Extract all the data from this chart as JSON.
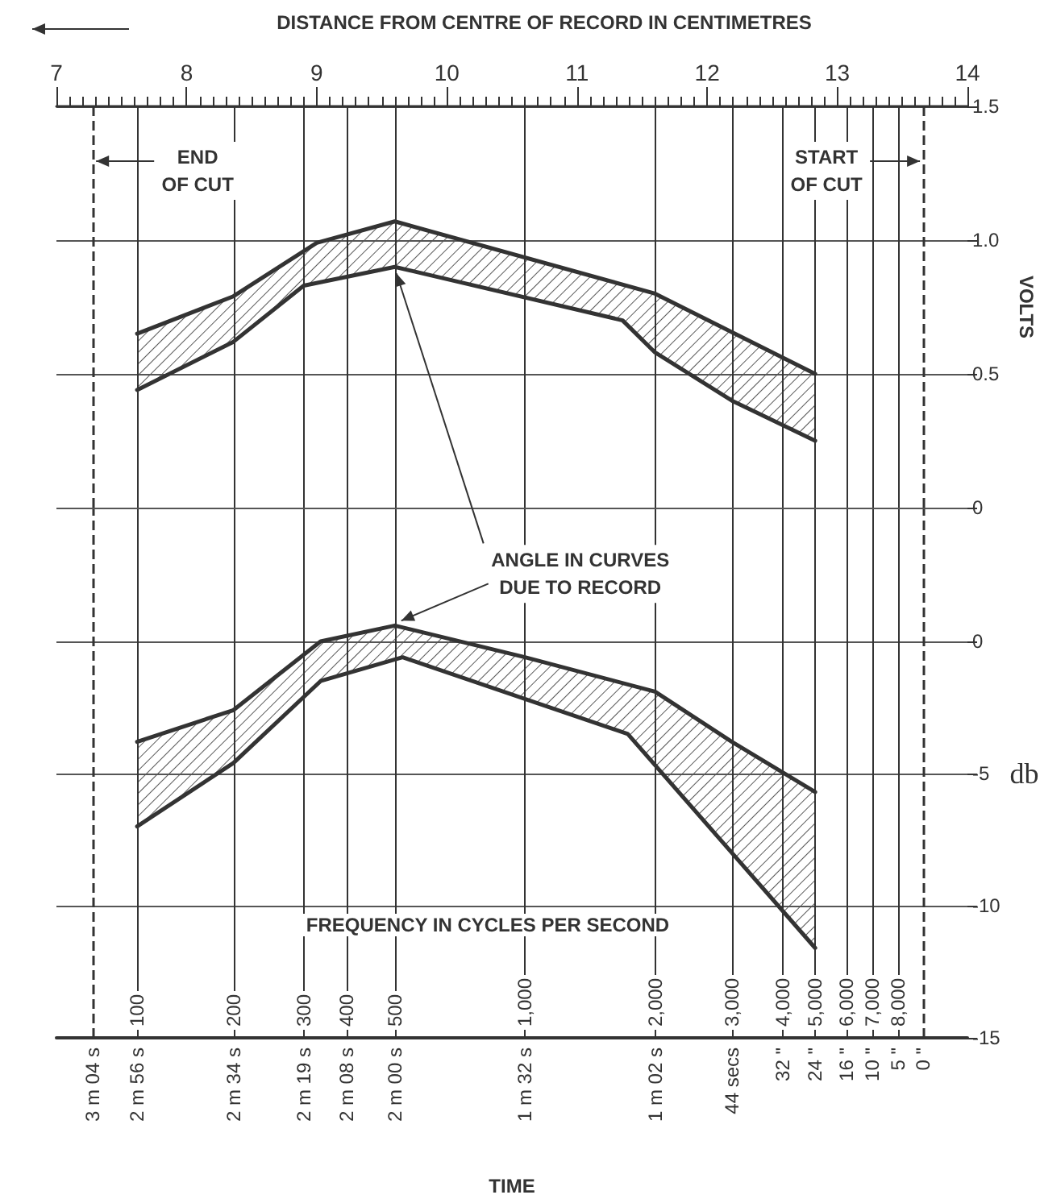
{
  "chart_data": [
    {
      "type": "line",
      "xlabel": "DISTANCE FROM CENTRE OF RECORD IN CENTIMETRES",
      "ylabel": "VOLTS",
      "xlim": [
        7,
        14
      ],
      "xticks": [
        7,
        8,
        9,
        10,
        11,
        12,
        13,
        14
      ],
      "ylim": [
        0,
        1.5
      ],
      "yticks": [
        0,
        0.5,
        {
          "value": 1,
          "label": "1.0"
        },
        1.5
      ],
      "grid": "y",
      "marker": "none",
      "ref_lines": [
        {
          "axis": "x",
          "value": 7.28,
          "label": "END\nOF CUT",
          "line_style": "dashed"
        },
        {
          "axis": "x",
          "value": 13.66,
          "label": "START\nOF CUT",
          "line_style": "dashed"
        },
        {
          "axis": "x",
          "value": 7.62
        },
        {
          "axis": "x",
          "value": 8.36
        },
        {
          "axis": "x",
          "value": 8.9
        },
        {
          "axis": "x",
          "value": 9.23
        },
        {
          "axis": "x",
          "value": 9.6
        },
        {
          "axis": "x",
          "value": 10.6
        },
        {
          "axis": "x",
          "value": 11.6
        },
        {
          "axis": "x",
          "value": 12.19
        },
        {
          "axis": "x",
          "value": 12.58
        },
        {
          "axis": "x",
          "value": 12.83
        },
        {
          "axis": "x",
          "value": 13.07
        },
        {
          "axis": "x",
          "value": 13.27
        },
        {
          "axis": "x",
          "value": 13.47
        }
      ],
      "series": [
        {
          "color": "#333333",
          "x": [
            7.62,
            8.36,
            9.0,
            9.6,
            11.6,
            12.83
          ],
          "values": [
            0.65,
            0.79,
            0.99,
            1.07,
            0.8,
            0.5
          ]
        },
        {
          "color": "#333333",
          "x": [
            7.62,
            8.36,
            8.9,
            9.6,
            11.35,
            11.6,
            12.19,
            12.83
          ],
          "values": [
            0.44,
            0.62,
            0.83,
            0.9,
            0.7,
            0.58,
            0.4,
            0.25
          ]
        }
      ]
    },
    {
      "type": "line",
      "xlabel": "TIME",
      "ylabel": "db",
      "xlim": [
        7,
        14
      ],
      "tick_labels": "y",
      "ylim": [
        -15,
        5
      ],
      "yticks": [
        0,
        -5,
        -10,
        -15
      ],
      "grid": "y",
      "marker": "none",
      "ref_lines": [
        {
          "axis": "x",
          "value": 7.28,
          "line_style": "dashed"
        },
        {
          "axis": "x",
          "value": 7.62
        },
        {
          "axis": "x",
          "value": 8.36
        },
        {
          "axis": "x",
          "value": 8.9
        },
        {
          "axis": "x",
          "value": 9.23
        },
        {
          "axis": "x",
          "value": 9.6
        },
        {
          "axis": "x",
          "value": 10.6
        },
        {
          "axis": "x",
          "value": 11.6
        },
        {
          "axis": "x",
          "value": 12.19
        },
        {
          "axis": "x",
          "value": 12.58
        },
        {
          "axis": "x",
          "value": 12.83
        },
        {
          "axis": "x",
          "value": 13.07
        },
        {
          "axis": "x",
          "value": 13.27
        },
        {
          "axis": "x",
          "value": 13.47
        },
        {
          "axis": "x",
          "value": 13.66,
          "line_style": "dashed"
        }
      ],
      "annotations": [
        {
          "text": "ANGLE IN CURVES\nDUE TO RECORD",
          "x": 9.6,
          "y": 0.6
        },
        "FREQUENCY IN CYCLES PER SECOND",
        {
          "text": "100",
          "x": 7.62
        },
        {
          "text": "200",
          "x": 8.36
        },
        {
          "text": "300",
          "x": 8.9
        },
        {
          "text": "400",
          "x": 9.23
        },
        {
          "text": "500",
          "x": 9.6
        },
        {
          "text": "1,000",
          "x": 10.6
        },
        {
          "text": "2,000",
          "x": 11.6
        },
        {
          "text": "3,000",
          "x": 12.19
        },
        {
          "text": "4,000",
          "x": 12.58
        },
        {
          "text": "5,000",
          "x": 12.83
        },
        {
          "text": "6,000",
          "x": 13.07
        },
        {
          "text": "7,000",
          "x": 13.27
        },
        {
          "text": "8,000",
          "x": 13.47
        },
        {
          "text": "3 m 04 s",
          "x": 7.28,
          "y": -15
        },
        {
          "text": "2 m 56 s",
          "x": 7.62,
          "y": -15
        },
        {
          "text": "2 m 34 s",
          "x": 8.36,
          "y": -15
        },
        {
          "text": "2 m 19 s",
          "x": 8.9,
          "y": -15
        },
        {
          "text": "2 m 08 s",
          "x": 9.23,
          "y": -15
        },
        {
          "text": "2 m 00 s",
          "x": 9.6,
          "y": -15
        },
        {
          "text": "1 m 32 s",
          "x": 10.6,
          "y": -15
        },
        {
          "text": "1 m 02 s",
          "x": 11.6,
          "y": -15
        },
        {
          "text": "44 secs",
          "x": 12.19,
          "y": -15
        },
        {
          "text": "32 \"",
          "x": 12.58,
          "y": -15
        },
        {
          "text": "24 \"",
          "x": 12.83,
          "y": -15
        },
        {
          "text": "16 \"",
          "x": 13.07,
          "y": -15
        },
        {
          "text": "10 \"",
          "x": 13.27,
          "y": -15
        },
        {
          "text": "5 \"",
          "x": 13.47,
          "y": -15
        },
        {
          "text": "0 \"",
          "x": 13.66,
          "y": -15
        }
      ],
      "series": [
        {
          "color": "#333333",
          "x": [
            7.62,
            8.36,
            9.03,
            9.6,
            10.6,
            11.6,
            12.19,
            12.83
          ],
          "values": [
            -3.8,
            -2.6,
            0,
            0.6,
            -0.6,
            -1.9,
            -3.8,
            -5.7
          ]
        },
        {
          "color": "#333333",
          "x": [
            7.62,
            8.36,
            9.03,
            9.66,
            11.39,
            12.19,
            12.83
          ],
          "values": [
            -7,
            -4.6,
            -1.5,
            -0.6,
            -3.5,
            -8,
            -11.6
          ]
        }
      ]
    }
  ]
}
